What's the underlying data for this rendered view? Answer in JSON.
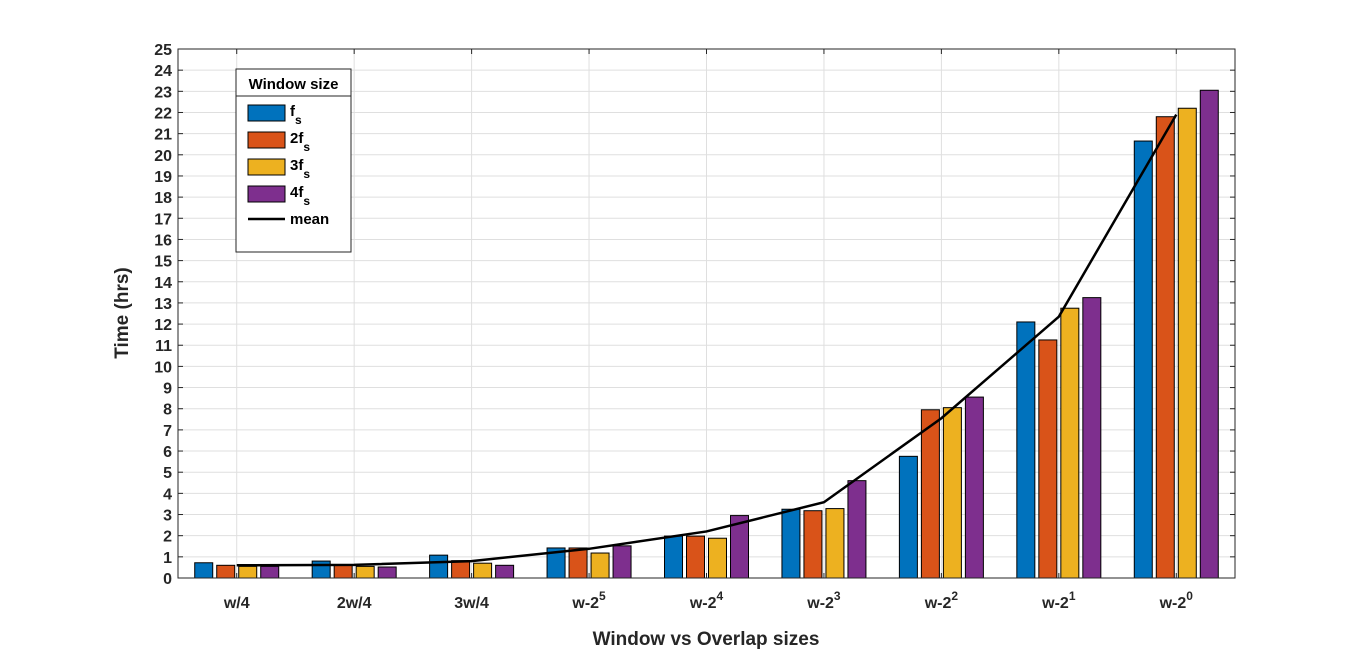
{
  "chart_data": {
    "type": "bar",
    "xlabel": "Window vs Overlap sizes",
    "ylabel": "Time (hrs)",
    "ylim": [
      0,
      25
    ],
    "yticks": [
      0,
      1,
      2,
      3,
      4,
      5,
      6,
      7,
      8,
      9,
      10,
      11,
      12,
      13,
      14,
      15,
      16,
      17,
      18,
      19,
      20,
      21,
      22,
      23,
      24,
      25
    ],
    "grid": true,
    "legend_placement": "top-left",
    "legend_title": "Window size",
    "categories": [
      {
        "base": "w/4",
        "sup": ""
      },
      {
        "base": "2w/4",
        "sup": ""
      },
      {
        "base": "3w/4",
        "sup": ""
      },
      {
        "base": "w-2",
        "sup": "5"
      },
      {
        "base": "w-2",
        "sup": "4"
      },
      {
        "base": "w-2",
        "sup": "3"
      },
      {
        "base": "w-2",
        "sup": "2"
      },
      {
        "base": "w-2",
        "sup": "1"
      },
      {
        "base": "w-2",
        "sup": "0"
      }
    ],
    "series": [
      {
        "name": "f",
        "sub": "s",
        "color": "#0072BD",
        "values": [
          0.72,
          0.8,
          1.08,
          1.42,
          1.98,
          3.25,
          5.75,
          12.1,
          20.65
        ]
      },
      {
        "name": "2f",
        "sub": "s",
        "color": "#D95319",
        "values": [
          0.6,
          0.62,
          0.82,
          1.42,
          1.98,
          3.18,
          7.95,
          11.25,
          21.8
        ]
      },
      {
        "name": "3f",
        "sub": "s",
        "color": "#EDB120",
        "values": [
          0.55,
          0.55,
          0.7,
          1.18,
          1.88,
          3.28,
          8.05,
          12.75,
          22.2
        ]
      },
      {
        "name": "4f",
        "sub": "s",
        "color": "#7E2F8E",
        "values": [
          0.55,
          0.52,
          0.6,
          1.52,
          2.95,
          4.6,
          8.55,
          13.25,
          23.05
        ]
      }
    ],
    "line": {
      "name": "mean",
      "color": "#000000",
      "values": [
        0.6,
        0.62,
        0.8,
        1.38,
        2.2,
        3.58,
        7.55,
        12.35,
        21.9
      ]
    }
  }
}
